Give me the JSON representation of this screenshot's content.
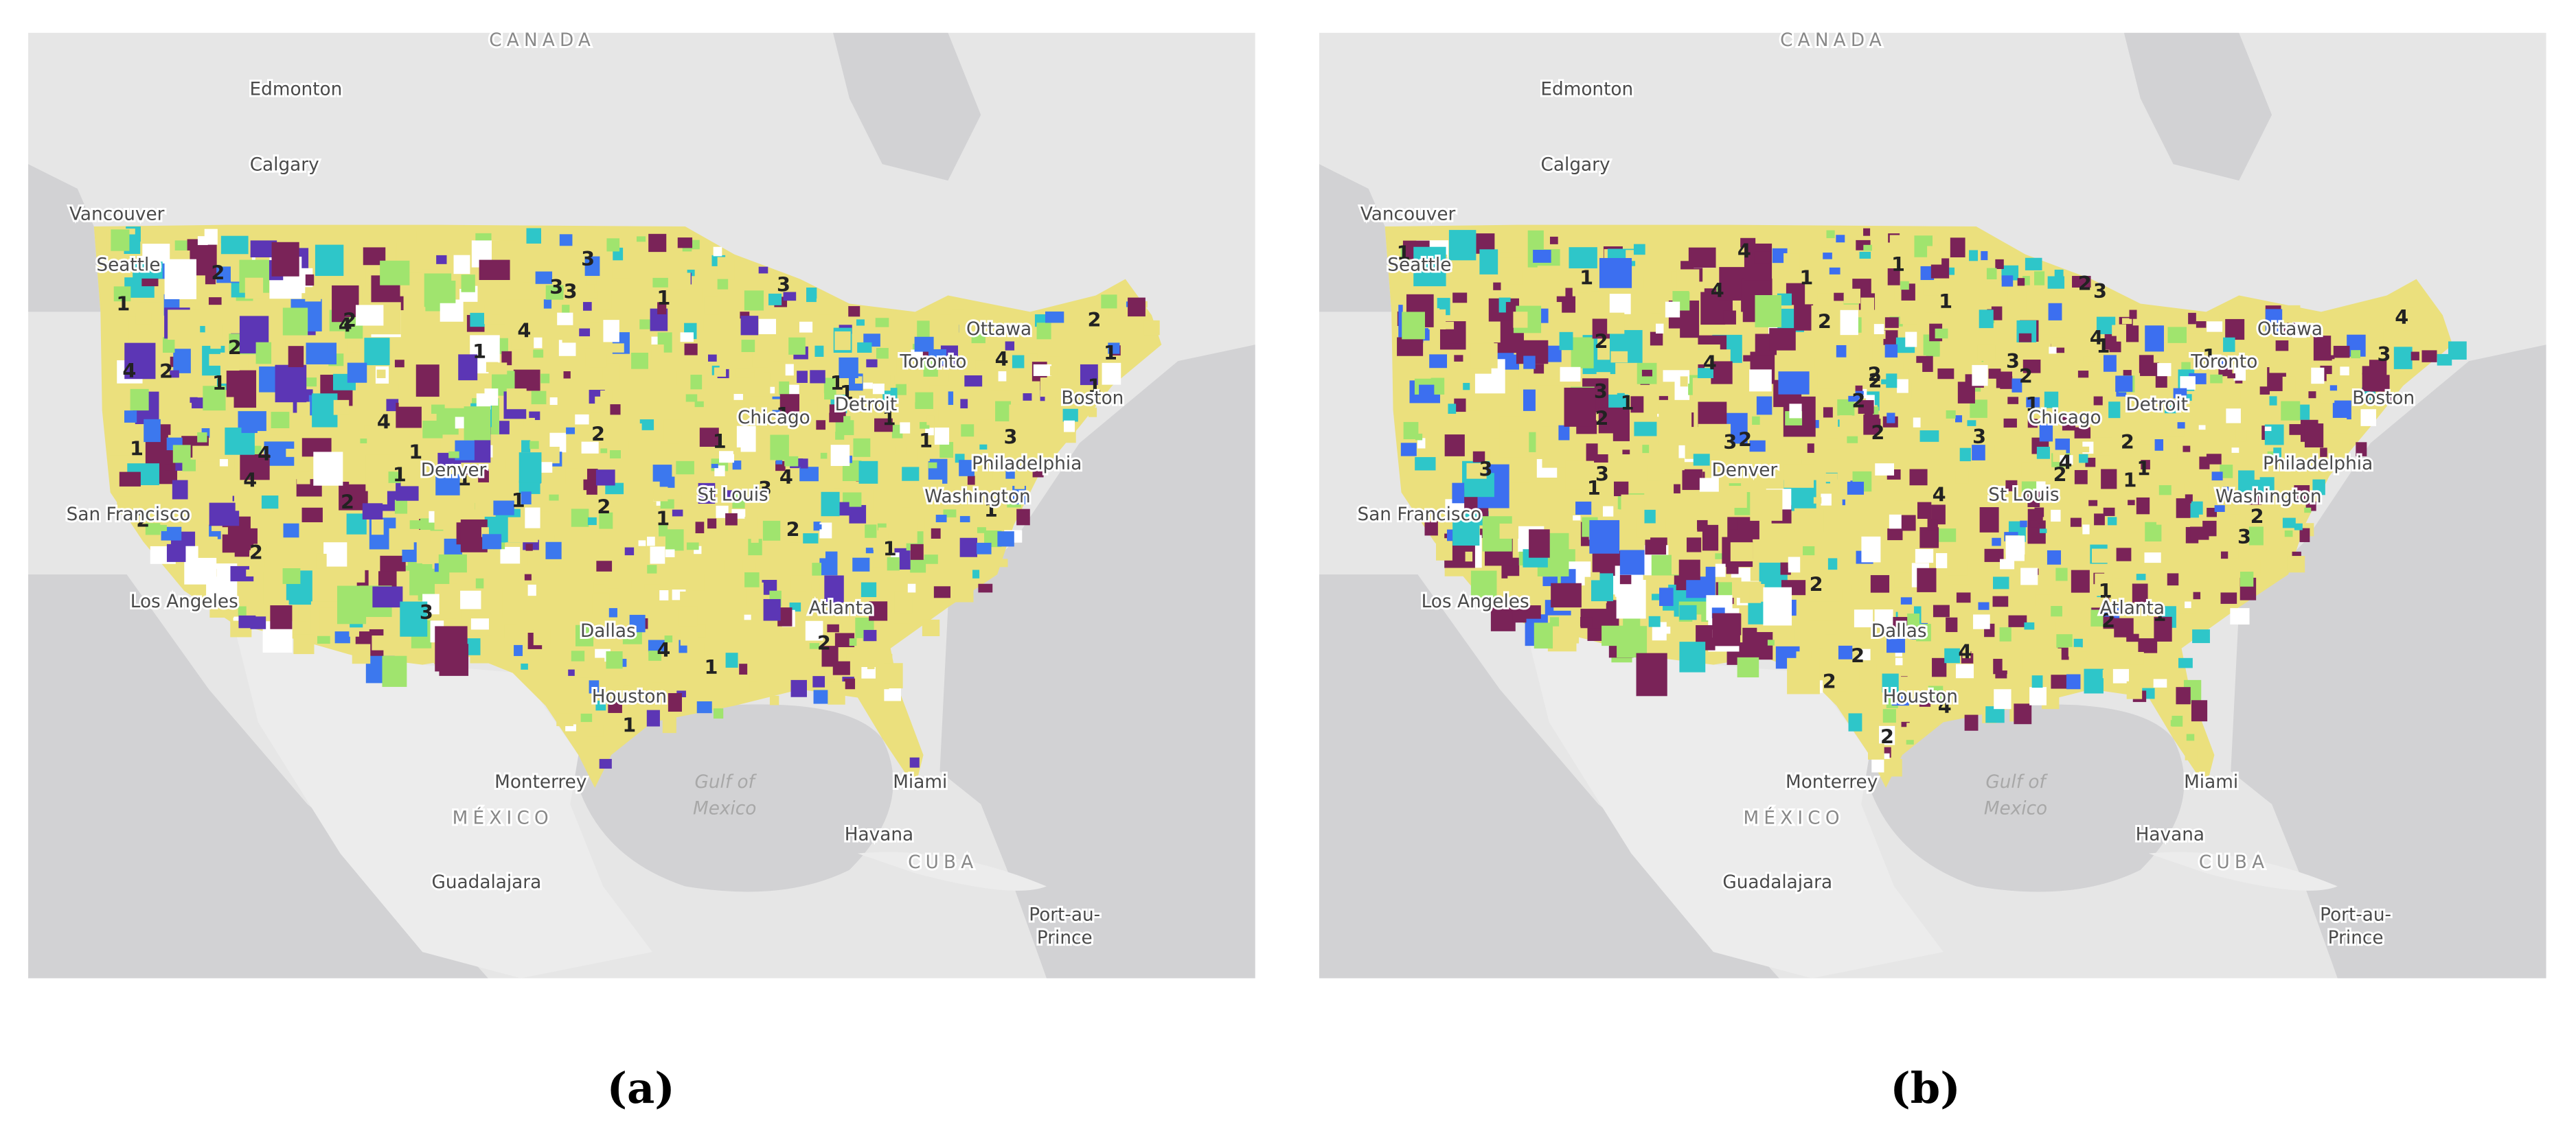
{
  "panels": [
    {
      "caption": "(a)",
      "places": [
        "CANADA",
        "Edmonton",
        "Calgary",
        "Vancouver",
        "Seattle",
        "San Francisco",
        "Los Angeles",
        "Denver",
        "Dallas",
        "Houston",
        "Monterrey",
        "MÉXICO",
        "Gulf of",
        "Mexico",
        "Guadalajara",
        "Havana",
        "CUBA",
        "Port-au-",
        "Prince",
        "Miami",
        "Atlanta",
        "St Louis",
        "Chicago",
        "Detroit",
        "Toronto",
        "Ottawa",
        "Boston",
        "Philadelphia",
        "Washington"
      ],
      "cluster_labels": [
        "1",
        "4",
        "4",
        "2",
        "1",
        "2",
        "1",
        "1",
        "2",
        "1",
        "3",
        "1",
        "4",
        "1",
        "3",
        "1",
        "1",
        "4",
        "2",
        "1",
        "1",
        "3",
        "4",
        "3",
        "1",
        "1",
        "2",
        "4",
        "1",
        "2",
        "3",
        "1",
        "2",
        "1",
        "4",
        "2",
        "1",
        "1",
        "3",
        "2",
        "1",
        "4",
        "2",
        "1",
        "3",
        "1",
        "2",
        "4",
        "1",
        "2"
      ]
    },
    {
      "caption": "(b)",
      "places": [
        "CANADA",
        "Edmonton",
        "Calgary",
        "Vancouver",
        "Seattle",
        "San Francisco",
        "Los Angeles",
        "Denver",
        "Dallas",
        "Houston",
        "Monterrey",
        "MÉXICO",
        "Gulf of",
        "Mexico",
        "Guadalajara",
        "Havana",
        "CUBA",
        "Port-au-",
        "Prince",
        "Miami",
        "Atlanta",
        "St Louis",
        "Chicago",
        "Detroit",
        "Toronto",
        "Ottawa",
        "Boston",
        "Philadelphia",
        "Washington"
      ],
      "cluster_labels": [
        "2",
        "3",
        "4",
        "1",
        "2",
        "2",
        "3",
        "1",
        "4",
        "2",
        "1",
        "3",
        "2",
        "4",
        "1",
        "2",
        "3",
        "1",
        "2",
        "4",
        "2",
        "1",
        "3",
        "2",
        "2",
        "4",
        "1",
        "3",
        "2",
        "1",
        "2",
        "4",
        "3",
        "1",
        "2",
        "2",
        "1",
        "4",
        "3",
        "2",
        "1",
        "2",
        "4",
        "1",
        "3",
        "2",
        "1",
        "2",
        "4",
        "1"
      ]
    }
  ]
}
